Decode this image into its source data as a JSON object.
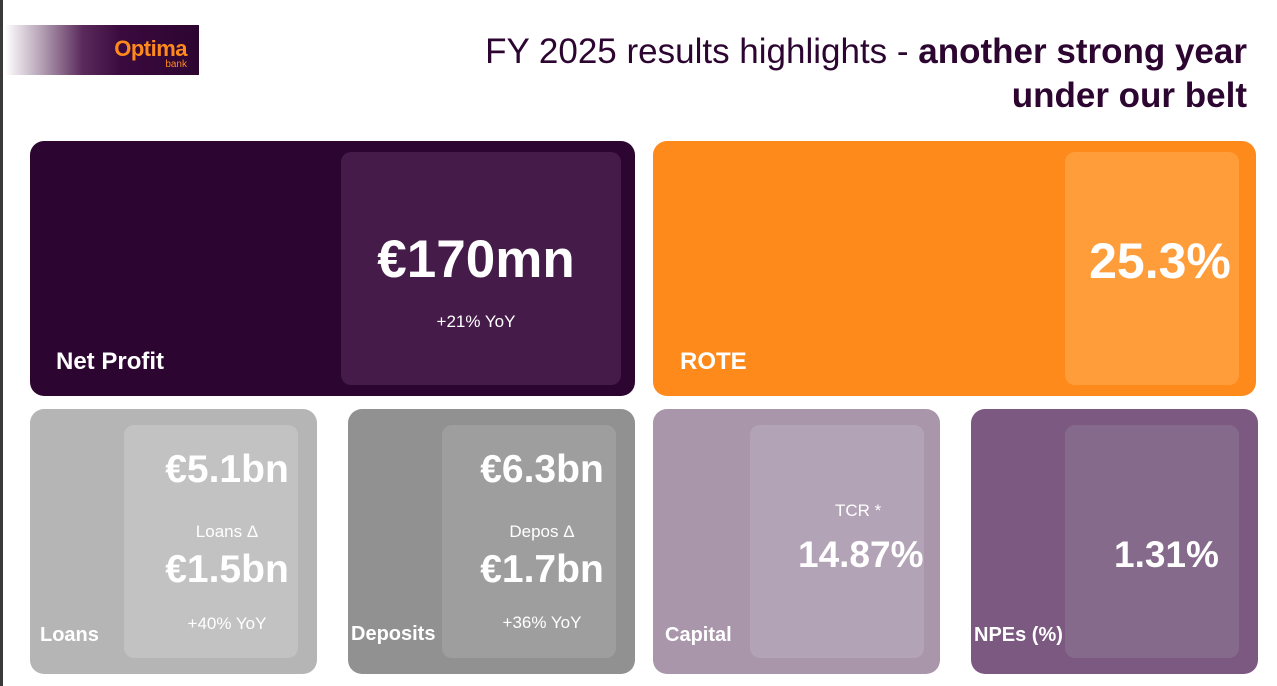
{
  "brand": {
    "name": "Optima",
    "sub": "bank"
  },
  "title": {
    "line1_regular": "FY 2025 results highlights - ",
    "line1_bold": "another strong year",
    "line2_bold": "under our belt"
  },
  "cards": {
    "net_profit": {
      "label": "Net Profit",
      "value": "€170mn",
      "change": "+21% YoY",
      "color": "#2d0531"
    },
    "rote": {
      "label": "ROTE",
      "value": "25.3%",
      "color": "#ff8a1c"
    },
    "loans": {
      "label": "Loans",
      "value": "€5.1bn",
      "delta_label": "Loans Δ",
      "delta_value": "€1.5bn",
      "change": "+40% YoY",
      "color": "#b5b5b5"
    },
    "deposits": {
      "label": "Deposits",
      "value": "€6.3bn",
      "delta_label": "Depos Δ",
      "delta_value": "€1.7bn",
      "change": "+36% YoY",
      "color": "#919191"
    },
    "capital": {
      "label": "Capital",
      "metric": "TCR *",
      "value": "14.87%",
      "color": "#a996ab"
    },
    "npes": {
      "label": "NPEs (%)",
      "value": "1.31%",
      "color": "#7b5980"
    }
  }
}
